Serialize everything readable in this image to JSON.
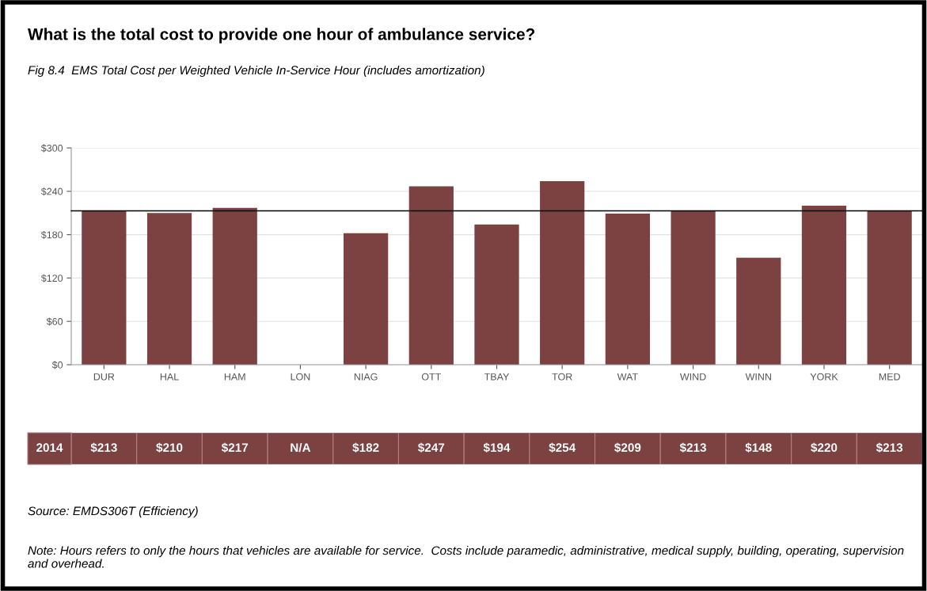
{
  "chart_data": {
    "type": "bar",
    "title": "What is the total cost to provide one hour of ambulance service?",
    "subtitle": "Fig 8.4  EMS Total Cost per Weighted Vehicle In-Service Hour (includes amortization)",
    "categories": [
      "DUR",
      "HAL",
      "HAM",
      "LON",
      "NIAG",
      "OTT",
      "TBAY",
      "TOR",
      "WAT",
      "WIND",
      "WINN",
      "YORK",
      "MED"
    ],
    "series": [
      {
        "name": "2014",
        "color": "#7b4241",
        "values": [
          213,
          210,
          217,
          null,
          182,
          247,
          194,
          254,
          209,
          213,
          148,
          220,
          213
        ],
        "value_labels": [
          "$213",
          "$210",
          "$217",
          "N/A",
          "$182",
          "$247",
          "$194",
          "$254",
          "$209",
          "$213",
          "$148",
          "$220",
          "$213"
        ]
      }
    ],
    "ylim": [
      0,
      300
    ],
    "yticks": [
      {
        "value": 0,
        "label": "$0"
      },
      {
        "value": 60,
        "label": "$60"
      },
      {
        "value": 120,
        "label": "$120"
      },
      {
        "value": 180,
        "label": "$180"
      },
      {
        "value": 240,
        "label": "$240"
      },
      {
        "value": 300,
        "label": "$300"
      }
    ],
    "ref_lines": [
      {
        "axis": "y",
        "value": 213,
        "color": "#000000"
      }
    ],
    "grid": "y",
    "legend": false,
    "annotations": [
      "Source: EMDS306T (Efficiency)",
      "Note: Hours refers to only the hours that vehicles are available for service.  Costs include paramedic, administrative, medical supply, building, operating, supervision and overhead."
    ]
  }
}
